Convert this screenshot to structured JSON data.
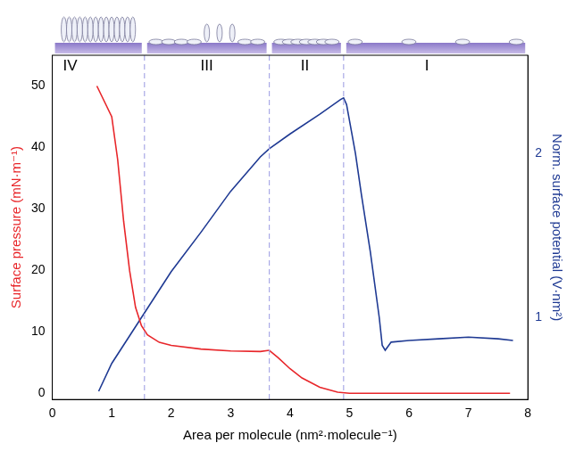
{
  "chart_data": {
    "type": "line",
    "x_label": "Area per molecule (nm²·molecule⁻¹)",
    "y_label": "Surface pressure (mN·m⁻¹)",
    "y2_label": "Norm. surface potential (V·nm²)",
    "xlim": [
      0,
      8
    ],
    "xticks": [
      0,
      1,
      2,
      3,
      4,
      5,
      6,
      7,
      8
    ],
    "ylim": [
      -1,
      55
    ],
    "yticks": [
      0,
      10,
      20,
      30,
      40,
      50
    ],
    "y2lim": [
      0.5,
      2.6
    ],
    "y2ticks": [
      1,
      2
    ],
    "grid": false,
    "region_boundaries": [
      1.55,
      3.65,
      4.9
    ],
    "annotations": [
      {
        "text": "IV",
        "x": 0.3
      },
      {
        "text": "III",
        "x": 2.6
      },
      {
        "text": "II",
        "x": 4.25
      },
      {
        "text": "I",
        "x": 6.3
      }
    ],
    "series": [
      {
        "color": "#e8262a",
        "axis": "y",
        "x": [
          0.75,
          0.85,
          1.0,
          1.1,
          1.2,
          1.3,
          1.4,
          1.5,
          1.6,
          1.8,
          2.0,
          2.5,
          3.0,
          3.5,
          3.65,
          3.8,
          4.0,
          4.2,
          4.5,
          4.8,
          5.0,
          6.0,
          7.0,
          7.7
        ],
        "values": [
          50,
          48,
          45,
          38,
          28,
          20,
          14,
          11,
          9.5,
          8.3,
          7.8,
          7.2,
          6.9,
          6.8,
          7.0,
          5.8,
          4.0,
          2.5,
          1.0,
          0.2,
          0,
          0,
          0,
          0
        ]
      },
      {
        "color": "#1f3a93",
        "axis": "y2",
        "x": [
          0.78,
          1.0,
          1.5,
          2.0,
          2.5,
          3.0,
          3.5,
          3.65,
          4.0,
          4.5,
          4.85,
          4.9,
          4.95,
          5.05,
          5.1,
          5.2,
          5.35,
          5.5,
          5.55,
          5.6,
          5.7,
          6.0,
          6.5,
          7.0,
          7.5,
          7.75
        ],
        "values": [
          0.55,
          0.72,
          1.0,
          1.28,
          1.52,
          1.77,
          1.98,
          2.03,
          2.12,
          2.24,
          2.33,
          2.34,
          2.3,
          2.1,
          2.0,
          1.75,
          1.4,
          1.0,
          0.83,
          0.8,
          0.85,
          0.86,
          0.87,
          0.88,
          0.87,
          0.86
        ]
      }
    ]
  }
}
